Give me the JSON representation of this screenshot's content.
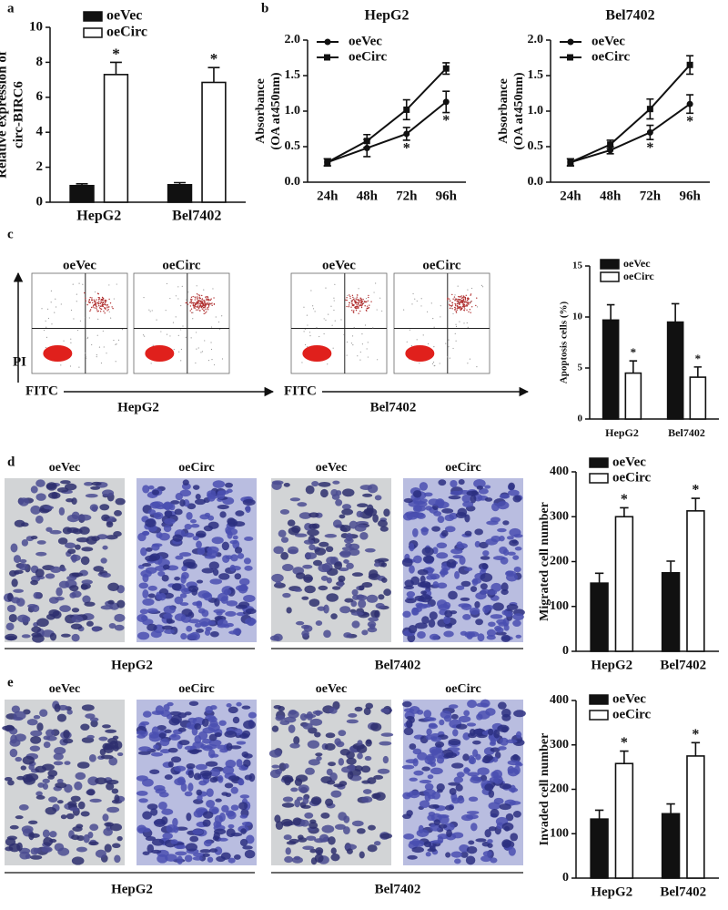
{
  "panel_labels": [
    "a",
    "b",
    "c",
    "d",
    "e"
  ],
  "flow": {
    "columns": [
      "oeVec",
      "oeCirc",
      "oeVec",
      "oeCirc"
    ],
    "y_axis": "PI",
    "x_axis": [
      "FITC",
      "FITC"
    ],
    "groups": [
      "HepG2",
      "Bel7402"
    ]
  },
  "migration": {
    "columns": [
      "oeVec",
      "oeCirc",
      "oeVec",
      "oeCirc"
    ],
    "groups": [
      "HepG2",
      "Bel7402"
    ]
  },
  "invasion": {
    "columns": [
      "oeVec",
      "oeCirc",
      "oeVec",
      "oeCirc"
    ],
    "groups": [
      "HepG2",
      "Bel7402"
    ]
  },
  "chart_data": [
    {
      "type": "bar",
      "categories": [
        "HepG2",
        "Bel7402"
      ],
      "series": [
        {
          "name": "oeVec",
          "color": "#111111",
          "values": [
            0.95,
            1.0
          ],
          "yerr": [
            0.1,
            0.12
          ]
        },
        {
          "name": "oeCirc",
          "color": "#ffffff",
          "values": [
            7.3,
            6.85
          ],
          "yerr": [
            0.7,
            0.85
          ],
          "annotations": [
            "*",
            "*"
          ]
        }
      ],
      "ylabel": [
        "Relative expression of",
        "circ-BIRC6"
      ],
      "ylim": [
        0,
        10
      ],
      "yticks": [
        0,
        2,
        4,
        6,
        8,
        10
      ]
    },
    {
      "type": "line",
      "title": "HepG2",
      "categories": [
        "24h",
        "48h",
        "72h",
        "96h"
      ],
      "series": [
        {
          "name": "oeVec",
          "color": "#111111",
          "marker": "circle",
          "values": [
            0.28,
            0.48,
            0.68,
            1.13
          ],
          "yerr": [
            0.05,
            0.12,
            0.09,
            0.15
          ],
          "annotations": [
            null,
            null,
            "*",
            "*"
          ]
        },
        {
          "name": "oeCirc",
          "color": "#111111",
          "marker": "square",
          "values": [
            0.28,
            0.58,
            1.02,
            1.6
          ],
          "yerr": [
            0.05,
            0.09,
            0.14,
            0.08
          ]
        }
      ],
      "ylabel": [
        "Absorbance",
        "(OA at450nm)"
      ],
      "ylim": [
        0,
        2
      ],
      "yticks": [
        {
          "value": 0,
          "label": "0.0"
        },
        0.5,
        {
          "value": 1,
          "label": "1.0"
        },
        1.5,
        {
          "value": 2,
          "label": "2.0"
        }
      ]
    },
    {
      "type": "line",
      "title": "Bel7402",
      "categories": [
        "24h",
        "48h",
        "72h",
        "96h"
      ],
      "series": [
        {
          "name": "oeVec",
          "color": "#111111",
          "marker": "circle",
          "values": [
            0.28,
            0.45,
            0.7,
            1.1
          ],
          "yerr": [
            0.05,
            0.05,
            0.1,
            0.13
          ],
          "annotations": [
            null,
            null,
            "*",
            "*"
          ]
        },
        {
          "name": "oeCirc",
          "color": "#111111",
          "marker": "square",
          "values": [
            0.28,
            0.53,
            1.03,
            1.65
          ],
          "yerr": [
            0.05,
            0.06,
            0.14,
            0.13
          ]
        }
      ],
      "ylabel": [
        "Absorbance",
        "(OA at450nm)"
      ],
      "ylim": [
        0,
        2
      ],
      "yticks": [
        {
          "value": 0,
          "label": "0.0"
        },
        0.5,
        {
          "value": 1,
          "label": "1.0"
        },
        1.5,
        {
          "value": 2,
          "label": "2.0"
        }
      ]
    },
    {
      "type": "bar",
      "categories": [
        "HepG2",
        "Bel7402"
      ],
      "series": [
        {
          "name": "oeVec",
          "color": "#111111",
          "values": [
            9.7,
            9.5
          ],
          "yerr": [
            1.5,
            1.8
          ]
        },
        {
          "name": "oeCirc",
          "color": "#ffffff",
          "values": [
            4.5,
            4.1
          ],
          "yerr": [
            1.2,
            1.0
          ],
          "annotations": [
            "*",
            "*"
          ]
        }
      ],
      "ylabel": [
        "Apoptosis cells (%)"
      ],
      "ylim": [
        0,
        15
      ],
      "yticks": [
        0,
        5,
        10,
        15
      ]
    },
    {
      "type": "bar",
      "categories": [
        "HepG2",
        "Bel7402"
      ],
      "series": [
        {
          "name": "oeVec",
          "color": "#111111",
          "values": [
            152,
            175
          ],
          "yerr": [
            22,
            26
          ]
        },
        {
          "name": "oeCirc",
          "color": "#ffffff",
          "values": [
            300,
            313
          ],
          "yerr": [
            20,
            28
          ],
          "annotations": [
            "*",
            "*"
          ]
        }
      ],
      "ylabel": [
        "Migrated cell number"
      ],
      "ylim": [
        0,
        400
      ],
      "yticks": [
        0,
        100,
        200,
        300,
        400
      ]
    },
    {
      "type": "bar",
      "categories": [
        "HepG2",
        "Bel7402"
      ],
      "series": [
        {
          "name": "oeVec",
          "color": "#111111",
          "values": [
            133,
            145
          ],
          "yerr": [
            20,
            22
          ]
        },
        {
          "name": "oeCirc",
          "color": "#ffffff",
          "values": [
            258,
            275
          ],
          "yerr": [
            28,
            30
          ],
          "annotations": [
            "*",
            "*"
          ]
        }
      ],
      "ylabel": [
        "Invaded cell number"
      ],
      "ylim": [
        0,
        400
      ],
      "yticks": [
        0,
        100,
        200,
        300,
        400
      ]
    }
  ]
}
